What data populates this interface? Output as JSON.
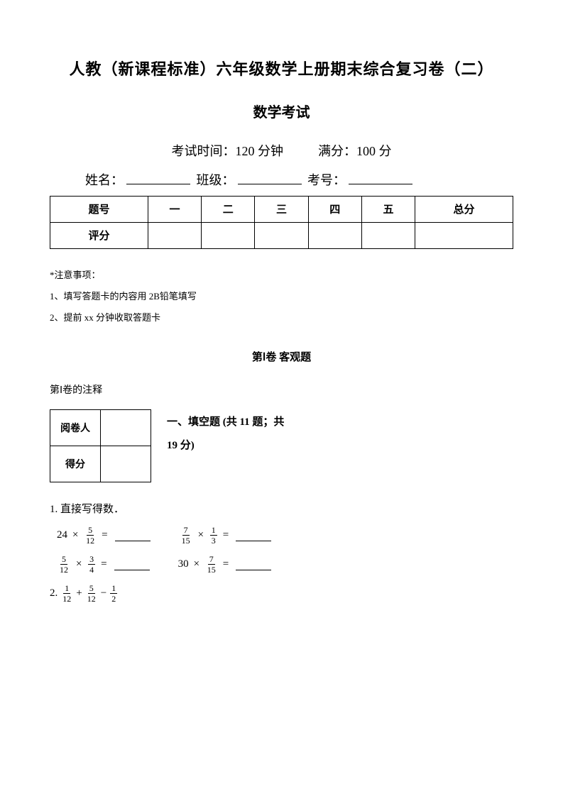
{
  "title": "人教（新课程标准）六年级数学上册期末综合复习卷（二）",
  "subtitle": "数学考试",
  "exam_time_label": "考试时间：",
  "exam_time_value": "120 分钟",
  "full_score_label": "满分：",
  "full_score_value": "100 分",
  "name_label": "姓名：",
  "class_label": "班级：",
  "id_label": "考号：",
  "score_table": {
    "row1": [
      "题号",
      "一",
      "二",
      "三",
      "四",
      "五",
      "总分"
    ],
    "row2_label": "评分"
  },
  "notes_title": "*注意事项：",
  "note1": "1、填写答题卡的内容用 2B铅笔填写",
  "note2": "2、提前 xx 分钟收取答题卡",
  "part_title": "第Ⅰ卷  客观题",
  "part_note": "第Ⅰ卷的注释",
  "mini_table": {
    "r1": "阅卷人",
    "r2": "得分"
  },
  "section1_line1": "一、填空题  (共 11 题；共",
  "section1_line2": "19 分)",
  "q1": "1. 直接写得数．",
  "q1_expressions": {
    "e1": {
      "lhs_int": "24",
      "frac": {
        "n": "5",
        "d": "12"
      }
    },
    "e2": {
      "f1": {
        "n": "7",
        "d": "15"
      },
      "f2": {
        "n": "1",
        "d": "3"
      }
    },
    "e3": {
      "f1": {
        "n": "5",
        "d": "12"
      },
      "f2": {
        "n": "3",
        "d": "4"
      }
    },
    "e4": {
      "lhs_int": "30",
      "frac": {
        "n": "7",
        "d": "15"
      }
    }
  },
  "q2_prefix": "2.",
  "q2": {
    "f1": {
      "n": "1",
      "d": "12"
    },
    "f2": {
      "n": "5",
      "d": "12"
    },
    "f3": {
      "n": "1",
      "d": "2"
    }
  }
}
